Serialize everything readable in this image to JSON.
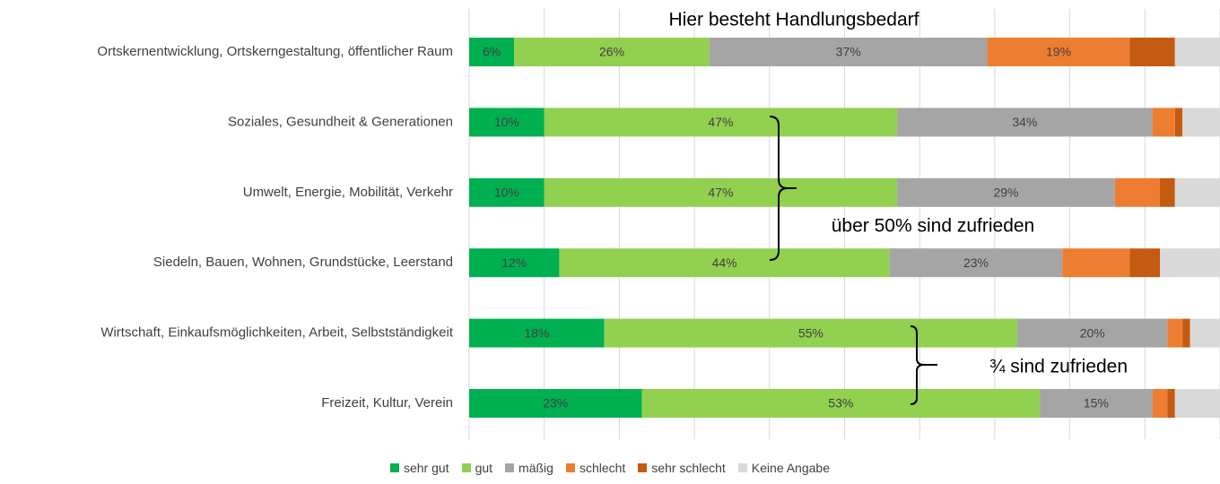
{
  "chart_data": {
    "type": "stacked_bar_horizontal",
    "annotations": [
      "Hier besteht Handlungsbedarf",
      "über 50% sind zufrieden",
      "¾ sind zufrieden"
    ],
    "categories": [
      "Ortskernentwicklung, Ortskerngestaltung, öffentlicher Raum",
      "Soziales, Gesundheit & Generationen",
      "Umwelt, Energie, Mobilität, Verkehr",
      "Siedeln, Bauen, Wohnen, Grundstücke, Leerstand",
      "Wirtschaft, Einkaufsmöglichkeiten, Arbeit, Selbstständigkeit",
      "Freizeit, Kultur, Verein"
    ],
    "series": [
      {
        "name": "sehr gut",
        "color": "#00b050",
        "values": [
          6,
          10,
          10,
          12,
          18,
          23
        ],
        "value_labels": [
          "6%",
          "10%",
          "10%",
          "12%",
          "18%",
          "23%"
        ]
      },
      {
        "name": "gut",
        "color": "#92d050",
        "values": [
          26,
          47,
          47,
          44,
          55,
          53
        ],
        "value_labels": [
          "26%",
          "47%",
          "47%",
          "44%",
          "55%",
          "53%"
        ]
      },
      {
        "name": "mäßig",
        "color": "#a5a5a5",
        "values": [
          37,
          34,
          29,
          23,
          20,
          15
        ],
        "value_labels": [
          "37%",
          "34%",
          "29%",
          "23%",
          "20%",
          "15%"
        ]
      },
      {
        "name": "schlecht",
        "color": "#ed7d31",
        "values": [
          19,
          3,
          6,
          9,
          2,
          2
        ],
        "value_labels": [
          "19%",
          null,
          null,
          null,
          null,
          null
        ]
      },
      {
        "name": "sehr schlecht",
        "color": "#c55a11",
        "values": [
          6,
          1,
          2,
          4,
          1,
          1
        ]
      },
      {
        "name": "Keine Angabe",
        "color": "#d9d9d9",
        "values": [
          6,
          5,
          6,
          8,
          4,
          6
        ]
      }
    ],
    "xlim": [
      0,
      100
    ],
    "xticks": [
      0,
      10,
      20,
      30,
      40,
      50,
      60,
      70,
      80,
      90,
      100
    ],
    "grid": true,
    "legend": "bottom"
  }
}
